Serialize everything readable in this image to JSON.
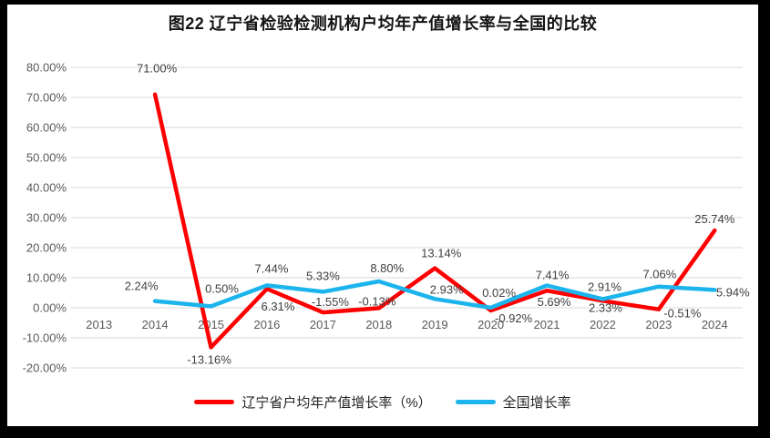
{
  "title": "图22  辽宁省检验检测机构户均年产值增长率与全国的比较",
  "chart_data": {
    "type": "line",
    "title": "图22  辽宁省检验检测机构户均年产值增长率与全国的比较",
    "categories": [
      "2013",
      "2014",
      "2015",
      "2016",
      "2017",
      "2018",
      "2019",
      "2020",
      "2021",
      "2022",
      "2023",
      "2024"
    ],
    "series": [
      {
        "name": "辽宁省户均年产值增长率（%）",
        "color": "#FE0000",
        "values": [
          null,
          71.0,
          -13.16,
          6.31,
          -1.55,
          -0.13,
          13.14,
          -0.92,
          5.69,
          2.33,
          -0.51,
          25.74
        ],
        "label_offsets": [
          null,
          [
            2,
            -28
          ],
          [
            -2,
            14
          ],
          [
            12,
            20
          ],
          [
            8,
            -11
          ],
          [
            -2,
            -7
          ],
          [
            7,
            -16
          ],
          [
            25,
            9
          ],
          [
            8,
            13
          ],
          [
            3,
            8
          ],
          [
            26,
            5
          ],
          [
            0,
            -12
          ]
        ]
      },
      {
        "name": "全国增长率",
        "color": "#1CB4EC",
        "values": [
          null,
          2.24,
          0.5,
          7.44,
          5.33,
          8.8,
          2.93,
          0.02,
          7.41,
          2.91,
          7.06,
          5.94
        ],
        "label_offsets": [
          null,
          [
            -15,
            -16
          ],
          [
            12,
            -19
          ],
          [
            5,
            -18
          ],
          [
            0,
            -17
          ],
          [
            9,
            -14
          ],
          [
            13,
            -10
          ],
          [
            9,
            -16
          ],
          [
            6,
            -11
          ],
          [
            2,
            -13
          ],
          [
            1,
            -13
          ],
          [
            20,
            3
          ]
        ]
      }
    ],
    "ylim": [
      -20,
      80
    ],
    "ytick_step": 10,
    "ytick_labels": [
      "80.00%",
      "70.00%",
      "60.00%",
      "50.00%",
      "40.00%",
      "30.00%",
      "20.00%",
      "10.00%",
      "0.00%",
      "-10.00%",
      "-20.00%"
    ],
    "value_label_format": "0.00%",
    "grid": true,
    "grid_color": "#D9D9D9",
    "tick_color": "#595959",
    "value_label_color": "#404040",
    "legend_position": "bottom"
  }
}
